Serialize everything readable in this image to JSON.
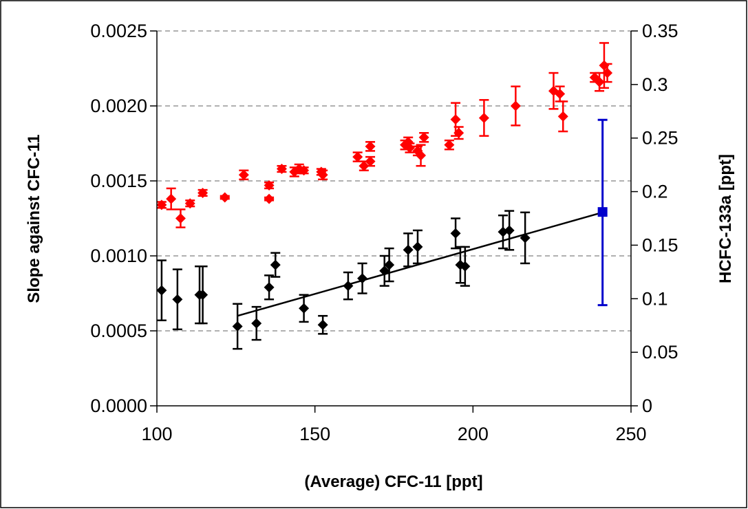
{
  "chart_data": {
    "type": "scatter",
    "xlabel": "(Average) CFC-11 [ppt]",
    "ylabel": "Slope against CFC-11",
    "y2label": "HCFC-133a [ppt]",
    "xlim": [
      100,
      250
    ],
    "ylim": [
      0,
      0.0025
    ],
    "y2lim": [
      0,
      0.35
    ],
    "x_ticks": [
      "100",
      "150",
      "200",
      "250"
    ],
    "y_ticks": [
      "0.0000",
      "0.0005",
      "0.0010",
      "0.0015",
      "0.0020",
      "0.0025"
    ],
    "y2_ticks": [
      "0",
      "0.05",
      "0.1",
      "0.15",
      "0.2",
      "0.25",
      "0.3",
      "0.35"
    ],
    "grid": "horizontal dashed",
    "series": [
      {
        "axis": "left",
        "color": "#ff0000",
        "marker": "diamond",
        "points": [
          {
            "x": 101.5,
            "y": 0.00134,
            "err": 2e-05
          },
          {
            "x": 104.5,
            "y": 0.00138,
            "err": 7e-05
          },
          {
            "x": 107.5,
            "y": 0.00125,
            "err": 6e-05
          },
          {
            "x": 110.5,
            "y": 0.00135,
            "err": 2e-05
          },
          {
            "x": 114.5,
            "y": 0.00142,
            "err": 2e-05
          },
          {
            "x": 121.5,
            "y": 0.00139,
            "err": 1e-05
          },
          {
            "x": 127.5,
            "y": 0.00154,
            "err": 3e-05
          },
          {
            "x": 135.5,
            "y": 0.00147,
            "err": 2e-05
          },
          {
            "x": 135.5,
            "y": 0.00138,
            "err": 1e-05
          },
          {
            "x": 139.5,
            "y": 0.00158,
            "err": 2e-05
          },
          {
            "x": 143.5,
            "y": 0.00156,
            "err": 3e-05
          },
          {
            "x": 145.0,
            "y": 0.00158,
            "err": 3e-05
          },
          {
            "x": 146.5,
            "y": 0.00157,
            "err": 2e-05
          },
          {
            "x": 152.0,
            "y": 0.00156,
            "err": 2e-05
          },
          {
            "x": 152.5,
            "y": 0.00154,
            "err": 3e-05
          },
          {
            "x": 163.5,
            "y": 0.00166,
            "err": 3e-05
          },
          {
            "x": 165.5,
            "y": 0.0016,
            "err": 3e-05
          },
          {
            "x": 167.5,
            "y": 0.00163,
            "err": 3e-05
          },
          {
            "x": 167.5,
            "y": 0.00173,
            "err": 3e-05
          },
          {
            "x": 178.5,
            "y": 0.00174,
            "err": 3e-05
          },
          {
            "x": 179.5,
            "y": 0.00176,
            "err": 3e-05
          },
          {
            "x": 180.0,
            "y": 0.00172,
            "err": 3e-05
          },
          {
            "x": 182.5,
            "y": 0.0017,
            "err": 3e-05
          },
          {
            "x": 183.5,
            "y": 0.00167,
            "err": 7e-05
          },
          {
            "x": 184.5,
            "y": 0.00179,
            "err": 3e-05
          },
          {
            "x": 192.5,
            "y": 0.00174,
            "err": 3e-05
          },
          {
            "x": 194.5,
            "y": 0.00191,
            "err": 0.00011
          },
          {
            "x": 195.5,
            "y": 0.00182,
            "err": 4e-05
          },
          {
            "x": 203.5,
            "y": 0.00192,
            "err": 0.00012
          },
          {
            "x": 213.5,
            "y": 0.002,
            "err": 0.00013
          },
          {
            "x": 225.5,
            "y": 0.0021,
            "err": 0.00012
          },
          {
            "x": 227.5,
            "y": 0.00208,
            "err": 5e-05
          },
          {
            "x": 228.5,
            "y": 0.00193,
            "err": 0.0001
          },
          {
            "x": 238.5,
            "y": 0.00219,
            "err": 3e-05
          },
          {
            "x": 240.0,
            "y": 0.00216,
            "err": 6e-05
          },
          {
            "x": 241.5,
            "y": 0.00227,
            "err": 0.00015
          },
          {
            "x": 242.5,
            "y": 0.00222,
            "err": 6e-05
          }
        ]
      },
      {
        "axis": "left",
        "color": "#000000",
        "marker": "diamond",
        "points": [
          {
            "x": 101.5,
            "y": 0.00077,
            "err": 0.0002
          },
          {
            "x": 106.5,
            "y": 0.00071,
            "err": 0.0002
          },
          {
            "x": 113.5,
            "y": 0.00074,
            "err": 0.00019
          },
          {
            "x": 114.5,
            "y": 0.00074,
            "err": 0.00019
          },
          {
            "x": 125.5,
            "y": 0.00053,
            "err": 0.00015
          },
          {
            "x": 131.5,
            "y": 0.00055,
            "err": 0.00011
          },
          {
            "x": 135.5,
            "y": 0.00079,
            "err": 8e-05
          },
          {
            "x": 137.5,
            "y": 0.00094,
            "err": 8e-05
          },
          {
            "x": 146.5,
            "y": 0.00065,
            "err": 9e-05
          },
          {
            "x": 152.5,
            "y": 0.00054,
            "err": 6e-05
          },
          {
            "x": 160.5,
            "y": 0.0008,
            "err": 9e-05
          },
          {
            "x": 165.0,
            "y": 0.00085,
            "err": 0.0001
          },
          {
            "x": 172.0,
            "y": 0.0009,
            "err": 0.0001
          },
          {
            "x": 173.5,
            "y": 0.00094,
            "err": 0.00011
          },
          {
            "x": 179.5,
            "y": 0.00104,
            "err": 0.00011
          },
          {
            "x": 182.5,
            "y": 0.00106,
            "err": 0.00011
          },
          {
            "x": 194.5,
            "y": 0.00115,
            "err": 0.0001
          },
          {
            "x": 196.0,
            "y": 0.00094,
            "err": 0.00012
          },
          {
            "x": 197.5,
            "y": 0.00093,
            "err": 0.00013
          },
          {
            "x": 209.5,
            "y": 0.00116,
            "err": 0.00011
          },
          {
            "x": 211.5,
            "y": 0.00117,
            "err": 0.00013
          },
          {
            "x": 216.5,
            "y": 0.00112,
            "err": 0.00017
          }
        ]
      },
      {
        "axis": "right",
        "color": "#0000cc",
        "marker": "square",
        "points": [
          {
            "x": 241.0,
            "y": 0.181,
            "err_low": 0.087,
            "err_high": 0.086
          }
        ]
      }
    ],
    "trendline": {
      "color": "#000000",
      "x": [
        125.5,
        241.0
      ],
      "y": [
        0.0006,
        0.00129
      ]
    }
  }
}
